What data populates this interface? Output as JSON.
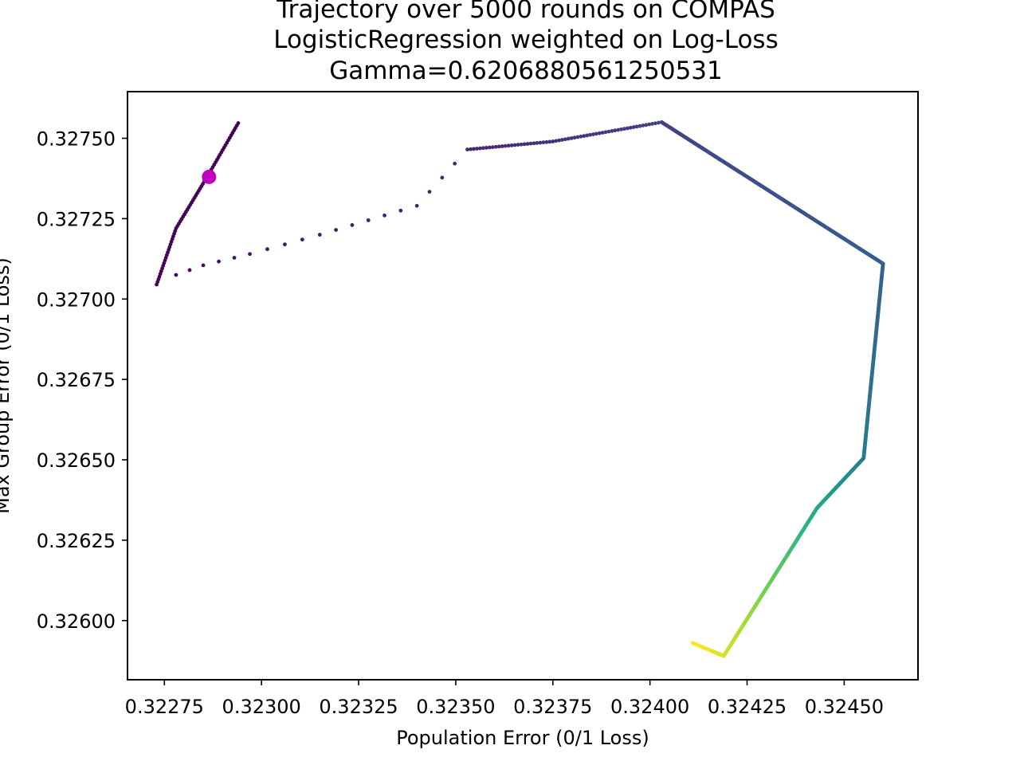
{
  "chart_data": {
    "type": "scatter",
    "title_lines": [
      "Trajectory over 5000 rounds on COMPAS",
      "LogisticRegression weighted on Log-Loss",
      "Gamma=0.6206880561250531"
    ],
    "xlabel": "Population Error (0/1 Loss)",
    "ylabel": "Max Group Error (0/1 Loss)",
    "xlim": [
      0.322655,
      0.32469
    ],
    "ylim": [
      0.325816,
      0.327645
    ],
    "xticks": [
      0.32275,
      0.323,
      0.32325,
      0.3235,
      0.32375,
      0.324,
      0.32425,
      0.3245
    ],
    "xtick_labels": [
      "0.32275",
      "0.32300",
      "0.32325",
      "0.32350",
      "0.32375",
      "0.32400",
      "0.32425",
      "0.32450"
    ],
    "yticks": [
      0.326,
      0.32625,
      0.3265,
      0.32675,
      0.327,
      0.32725,
      0.3275
    ],
    "ytick_labels": [
      "0.32600",
      "0.32625",
      "0.32650",
      "0.32675",
      "0.32700",
      "0.32725",
      "0.32750"
    ],
    "grid": false,
    "colormap": "viridis",
    "highlight_color": "#bf00bf",
    "trajectory": {
      "name": "trajectory",
      "description_of_color": "color encodes round index from early (dark purple) to late (yellow)",
      "x": [
        0.32294,
        0.32286,
        0.32278,
        0.32273,
        0.32278,
        0.32285,
        0.32297,
        0.32315,
        0.3234,
        0.32353,
        0.32375,
        0.32403,
        0.3246,
        0.32455,
        0.32443,
        0.32419,
        0.32411
      ],
      "y": [
        0.327547,
        0.32738,
        0.32722,
        0.327045,
        0.327075,
        0.327105,
        0.32714,
        0.3272,
        0.32729,
        0.327465,
        0.32749,
        0.32755,
        0.32711,
        0.326505,
        0.32635,
        0.32589,
        0.32593
      ],
      "t": [
        0.0,
        0.005,
        0.01,
        0.015,
        0.025,
        0.035,
        0.05,
        0.07,
        0.09,
        0.11,
        0.15,
        0.2,
        0.3,
        0.42,
        0.6,
        0.94,
        1.0
      ]
    },
    "highlight_point": {
      "x": 0.322865,
      "y": 0.32738
    }
  }
}
